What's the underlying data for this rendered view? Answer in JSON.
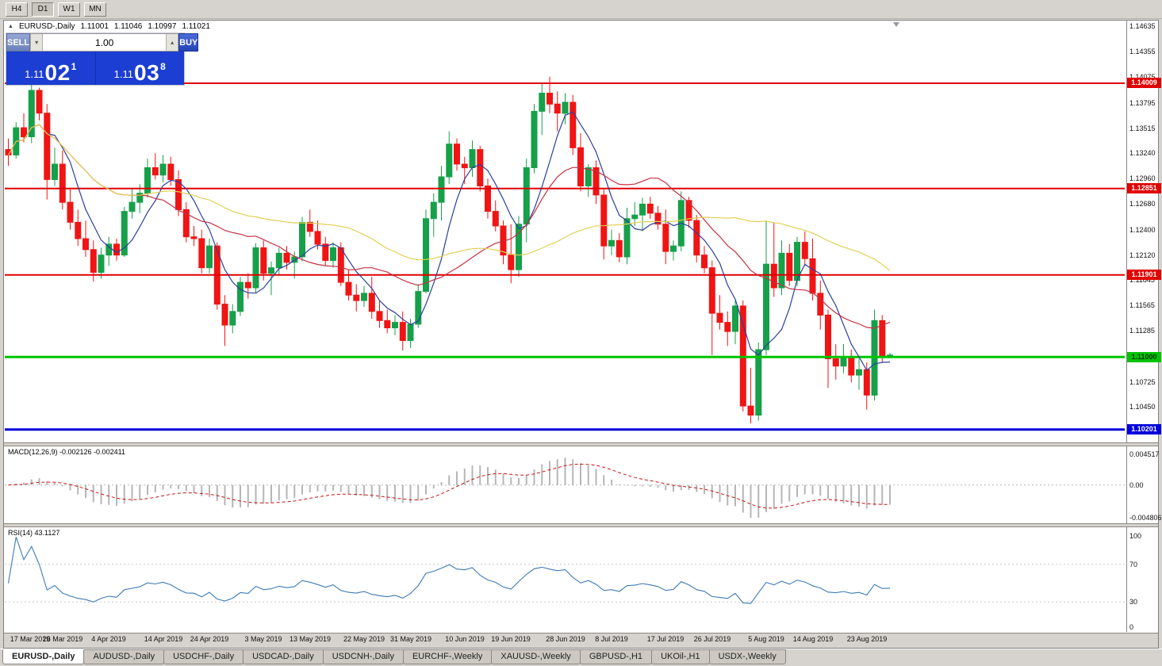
{
  "icons": {
    "panel_toggle": "▲",
    "volume_down": "▾",
    "volume_up": "▴"
  },
  "colors": {
    "up": "#16a04a",
    "down": "#f01414",
    "ma_fast": "#2b3f9e",
    "ma_mid": "#c63044",
    "ma_slow": "#e3cf54",
    "macd_hist": "#b6b6b6",
    "macd_signal": "#cc1111",
    "rsi": "#3d7ab8"
  },
  "toolbar": {
    "timeframes": [
      "H4",
      "D1",
      "W1",
      "MN"
    ],
    "active": "D1"
  },
  "chart_header": {
    "symbol": "EURUSD-,Daily",
    "open": "1.11001",
    "high": "1.11046",
    "low": "1.10997",
    "close": "1.11021"
  },
  "trade_panel": {
    "sell_label": "SELL",
    "buy_label": "BUY",
    "volume": "1.00",
    "sell_price_prefix": "1.11",
    "sell_price_big": "02",
    "sell_price_sup": "1",
    "buy_price_prefix": "1.11",
    "buy_price_big": "03",
    "buy_price_sup": "8"
  },
  "tabs": {
    "active_index": 0,
    "items": [
      "EURUSD-,Daily",
      "AUDUSD-,Daily",
      "USDCHF-,Daily",
      "USDCAD-,Daily",
      "USDCNH-,Daily",
      "EURCHF-,Weekly",
      "XAUUSD-,Weekly",
      "GBPUSD-,H1",
      "UKOil-,H1",
      "USDX-,Weekly"
    ]
  },
  "chart_data": {
    "type": "candlestick",
    "symbol": "EURUSD-",
    "timeframe": "Daily",
    "price_range": [
      1.1006,
      1.1468
    ],
    "y_ticks": [
      "1.14635",
      "1.14355",
      "1.14075",
      "1.13795",
      "1.13515",
      "1.13240",
      "1.12960",
      "1.12680",
      "1.12400",
      "1.12120",
      "1.11845",
      "1.11565",
      "1.11285",
      "1.10725",
      "1.10450"
    ],
    "horizontal_lines": [
      {
        "price": 1.14009,
        "color": "#e00000",
        "width": 2
      },
      {
        "price": 1.12851,
        "color": "#e00000",
        "width": 2
      },
      {
        "price": 1.11901,
        "color": "#e00000",
        "width": 2
      },
      {
        "price": 1.11,
        "color": "#00c400",
        "width": 3
      },
      {
        "price": 1.10201,
        "color": "#0000dd",
        "width": 3
      }
    ],
    "badges": [
      {
        "text": "1.14009",
        "price": 1.14009,
        "bg": "#e00000",
        "fg": "#ffffff"
      },
      {
        "text": "1.12851",
        "price": 1.12851,
        "bg": "#e00000",
        "fg": "#ffffff"
      },
      {
        "text": "1.11901",
        "price": 1.11901,
        "bg": "#e00000",
        "fg": "#ffffff"
      },
      {
        "text": "1.11000",
        "price": 1.11,
        "bg": "#00c400",
        "fg": "#00330a"
      },
      {
        "text": "1.10201",
        "price": 1.10201,
        "bg": "#0000dd",
        "fg": "#ffffff"
      }
    ],
    "moving_averages": [
      {
        "period": 6,
        "color": "#2b3f9e"
      },
      {
        "period": 18,
        "color": "#c63044"
      },
      {
        "period": 45,
        "color": "#e3cf54"
      }
    ],
    "macd": {
      "fast": 12,
      "slow": 26,
      "signal": 9,
      "label": "MACD(12,26,9) -0.002126 -0.002411",
      "axis_ticks": [
        "0.004517",
        "0.00",
        "-0.004806"
      ]
    },
    "rsi": {
      "period": 14,
      "label": "RSI(14) 43.1127",
      "axis_ticks": [
        "100",
        "70",
        "30",
        "0"
      ]
    },
    "x_labels": [
      {
        "text": "17 Mar 2019",
        "i": 0
      },
      {
        "text": "26 Mar 2019",
        "i": 7
      },
      {
        "text": "4 Apr 2019",
        "i": 13
      },
      {
        "text": "14 Apr 2019",
        "i": 20
      },
      {
        "text": "24 Apr 2019",
        "i": 26
      },
      {
        "text": "3 May 2019",
        "i": 33
      },
      {
        "text": "13 May 2019",
        "i": 39
      },
      {
        "text": "22 May 2019",
        "i": 46
      },
      {
        "text": "31 May 2019",
        "i": 52
      },
      {
        "text": "10 Jun 2019",
        "i": 59
      },
      {
        "text": "19 Jun 2019",
        "i": 65
      },
      {
        "text": "28 Jun 2019",
        "i": 72
      },
      {
        "text": "8 Jul 2019",
        "i": 78
      },
      {
        "text": "17 Jul 2019",
        "i": 85
      },
      {
        "text": "26 Jul 2019",
        "i": 91
      },
      {
        "text": "5 Aug 2019",
        "i": 98
      },
      {
        "text": "14 Aug 2019",
        "i": 104
      },
      {
        "text": "23 Aug 2019",
        "i": 111
      }
    ],
    "ohlc_series": [
      [
        1.1328,
        1.134,
        1.131,
        1.1322
      ],
      [
        1.1322,
        1.1358,
        1.1318,
        1.1352
      ],
      [
        1.1352,
        1.1368,
        1.1336,
        1.1342
      ],
      [
        1.1342,
        1.1401,
        1.1335,
        1.1393
      ],
      [
        1.1393,
        1.1396,
        1.136,
        1.1368
      ],
      [
        1.1368,
        1.1378,
        1.1273,
        1.1295
      ],
      [
        1.1295,
        1.133,
        1.1288,
        1.1312
      ],
      [
        1.1312,
        1.1327,
        1.1262,
        1.127
      ],
      [
        1.127,
        1.1286,
        1.124,
        1.1248
      ],
      [
        1.1248,
        1.1262,
        1.1222,
        1.123
      ],
      [
        1.123,
        1.125,
        1.121,
        1.1218
      ],
      [
        1.1218,
        1.1228,
        1.1183,
        1.1193
      ],
      [
        1.1193,
        1.122,
        1.1186,
        1.1212
      ],
      [
        1.1212,
        1.1232,
        1.12,
        1.1224
      ],
      [
        1.1224,
        1.123,
        1.1206,
        1.1212
      ],
      [
        1.1212,
        1.1265,
        1.121,
        1.126
      ],
      [
        1.126,
        1.1285,
        1.1252,
        1.127
      ],
      [
        1.127,
        1.129,
        1.1258,
        1.128
      ],
      [
        1.128,
        1.1318,
        1.1275,
        1.1308
      ],
      [
        1.1308,
        1.1324,
        1.1295,
        1.13
      ],
      [
        1.13,
        1.1322,
        1.1292,
        1.1312
      ],
      [
        1.1312,
        1.132,
        1.1288,
        1.1295
      ],
      [
        1.1295,
        1.1305,
        1.1255,
        1.1262
      ],
      [
        1.1262,
        1.127,
        1.1226,
        1.1232
      ],
      [
        1.1232,
        1.1244,
        1.1222,
        1.123
      ],
      [
        1.123,
        1.124,
        1.1192,
        1.1198
      ],
      [
        1.1198,
        1.123,
        1.1192,
        1.1222
      ],
      [
        1.1222,
        1.1226,
        1.1152,
        1.1158
      ],
      [
        1.1158,
        1.1168,
        1.1112,
        1.1135
      ],
      [
        1.1135,
        1.1158,
        1.1126,
        1.115
      ],
      [
        1.115,
        1.1188,
        1.1145,
        1.1182
      ],
      [
        1.1182,
        1.1192,
        1.1164,
        1.1176
      ],
      [
        1.1176,
        1.1225,
        1.117,
        1.122
      ],
      [
        1.122,
        1.1228,
        1.1184,
        1.1192
      ],
      [
        1.1192,
        1.1205,
        1.1168,
        1.1198
      ],
      [
        1.1198,
        1.122,
        1.119,
        1.1214
      ],
      [
        1.1214,
        1.1222,
        1.1196,
        1.1204
      ],
      [
        1.1204,
        1.1216,
        1.1186,
        1.121
      ],
      [
        1.121,
        1.1254,
        1.1205,
        1.1248
      ],
      [
        1.1248,
        1.1262,
        1.1232,
        1.1238
      ],
      [
        1.1238,
        1.125,
        1.1218,
        1.1224
      ],
      [
        1.1224,
        1.1232,
        1.12,
        1.1206
      ],
      [
        1.1206,
        1.1226,
        1.1198,
        1.122
      ],
      [
        1.122,
        1.1226,
        1.1178,
        1.1182
      ],
      [
        1.1182,
        1.1196,
        1.1162,
        1.1168
      ],
      [
        1.1168,
        1.118,
        1.115,
        1.1162
      ],
      [
        1.1162,
        1.1178,
        1.1155,
        1.117
      ],
      [
        1.117,
        1.1188,
        1.1142,
        1.115
      ],
      [
        1.115,
        1.1162,
        1.1132,
        1.114
      ],
      [
        1.114,
        1.1152,
        1.1126,
        1.1132
      ],
      [
        1.1132,
        1.1146,
        1.1124,
        1.1138
      ],
      [
        1.1138,
        1.115,
        1.1107,
        1.1118
      ],
      [
        1.1118,
        1.1142,
        1.111,
        1.1136
      ],
      [
        1.1136,
        1.118,
        1.1132,
        1.1172
      ],
      [
        1.1172,
        1.1262,
        1.117,
        1.1252
      ],
      [
        1.1252,
        1.128,
        1.1232,
        1.127
      ],
      [
        1.127,
        1.131,
        1.125,
        1.1298
      ],
      [
        1.1298,
        1.1348,
        1.129,
        1.1334
      ],
      [
        1.1334,
        1.134,
        1.1305,
        1.1312
      ],
      [
        1.1312,
        1.132,
        1.129,
        1.1308
      ],
      [
        1.1308,
        1.1338,
        1.1298,
        1.1328
      ],
      [
        1.1328,
        1.1332,
        1.1282,
        1.1288
      ],
      [
        1.1288,
        1.1296,
        1.1252,
        1.126
      ],
      [
        1.126,
        1.1272,
        1.1238,
        1.1244
      ],
      [
        1.1244,
        1.125,
        1.1202,
        1.1212
      ],
      [
        1.1212,
        1.1246,
        1.1181,
        1.1196
      ],
      [
        1.1196,
        1.1255,
        1.1188,
        1.1246
      ],
      [
        1.1246,
        1.1318,
        1.1226,
        1.1308
      ],
      [
        1.1308,
        1.1378,
        1.1302,
        1.137
      ],
      [
        1.137,
        1.14,
        1.1344,
        1.139
      ],
      [
        1.139,
        1.1408,
        1.1368,
        1.1378
      ],
      [
        1.1378,
        1.1392,
        1.1348,
        1.1368
      ],
      [
        1.1368,
        1.139,
        1.1356,
        1.138
      ],
      [
        1.138,
        1.1388,
        1.1322,
        1.133
      ],
      [
        1.133,
        1.1346,
        1.1282,
        1.1288
      ],
      [
        1.1288,
        1.1312,
        1.1276,
        1.1308
      ],
      [
        1.1308,
        1.1316,
        1.1268,
        1.1278
      ],
      [
        1.1278,
        1.1286,
        1.1207,
        1.1222
      ],
      [
        1.1222,
        1.124,
        1.1212,
        1.1228
      ],
      [
        1.1228,
        1.1236,
        1.1204,
        1.121
      ],
      [
        1.121,
        1.1264,
        1.1202,
        1.1252
      ],
      [
        1.1252,
        1.127,
        1.1244,
        1.1256
      ],
      [
        1.1256,
        1.1275,
        1.1238,
        1.1268
      ],
      [
        1.1268,
        1.1276,
        1.1252,
        1.1258
      ],
      [
        1.1258,
        1.1266,
        1.124,
        1.1246
      ],
      [
        1.1246,
        1.1262,
        1.1202,
        1.1216
      ],
      [
        1.1216,
        1.1228,
        1.1206,
        1.1222
      ],
      [
        1.1222,
        1.1282,
        1.1216,
        1.1272
      ],
      [
        1.1272,
        1.1276,
        1.1242,
        1.125
      ],
      [
        1.125,
        1.1256,
        1.1204,
        1.1212
      ],
      [
        1.1212,
        1.1222,
        1.1192,
        1.1198
      ],
      [
        1.1198,
        1.1206,
        1.1102,
        1.1148
      ],
      [
        1.1148,
        1.1168,
        1.113,
        1.1138
      ],
      [
        1.1138,
        1.115,
        1.1112,
        1.1128
      ],
      [
        1.1128,
        1.1162,
        1.1114,
        1.1156
      ],
      [
        1.1156,
        1.1162,
        1.104,
        1.1046
      ],
      [
        1.1046,
        1.1088,
        1.1027,
        1.1036
      ],
      [
        1.1036,
        1.1116,
        1.103,
        1.1108
      ],
      [
        1.1108,
        1.125,
        1.1102,
        1.1202
      ],
      [
        1.1202,
        1.1248,
        1.1166,
        1.1176
      ],
      [
        1.1176,
        1.1228,
        1.1168,
        1.1214
      ],
      [
        1.1214,
        1.1224,
        1.1178,
        1.1184
      ],
      [
        1.1184,
        1.1232,
        1.1178,
        1.1226
      ],
      [
        1.1226,
        1.1238,
        1.12,
        1.1208
      ],
      [
        1.1208,
        1.123,
        1.1162,
        1.117
      ],
      [
        1.117,
        1.1184,
        1.113,
        1.1146
      ],
      [
        1.1146,
        1.1152,
        1.1066,
        1.1098
      ],
      [
        1.1098,
        1.1114,
        1.1075,
        1.109
      ],
      [
        1.109,
        1.1114,
        1.1082,
        1.11
      ],
      [
        1.11,
        1.1108,
        1.1072,
        1.108
      ],
      [
        1.108,
        1.1098,
        1.1064,
        1.1086
      ],
      [
        1.1086,
        1.1094,
        1.1042,
        1.1058
      ],
      [
        1.1058,
        1.1152,
        1.1052,
        1.114
      ],
      [
        1.114,
        1.1146,
        1.1094,
        1.11
      ],
      [
        1.11001,
        1.11046,
        1.10997,
        1.11021
      ]
    ]
  }
}
